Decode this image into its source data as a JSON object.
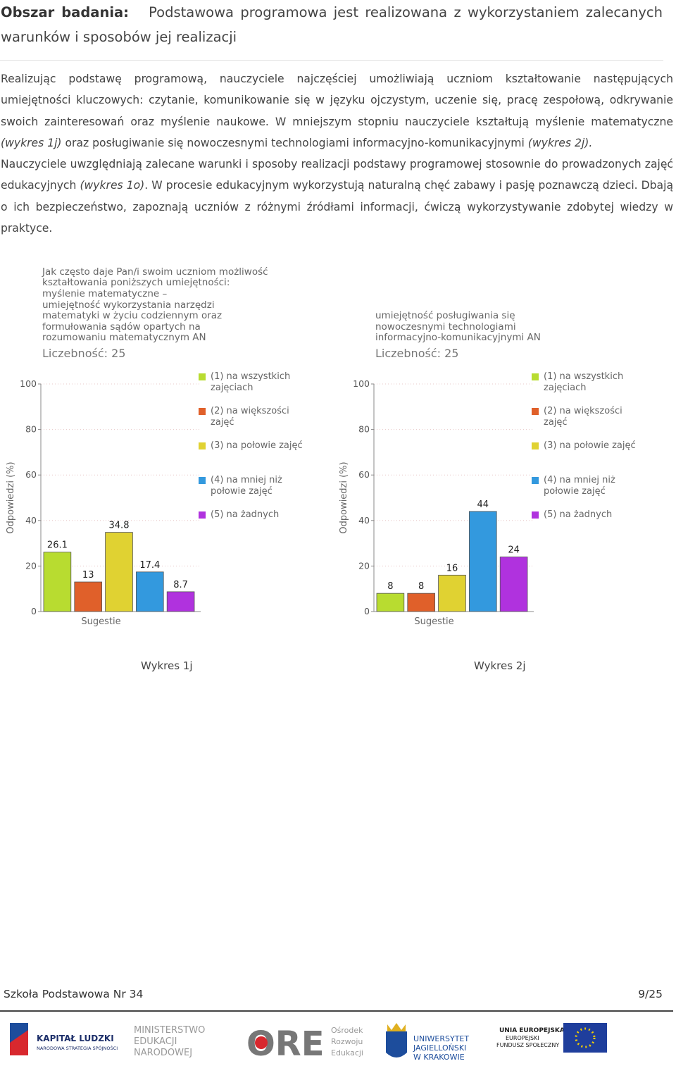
{
  "header": {
    "label": "Obszar badania:",
    "title": "Podstawowa programowa jest realizowana z wykorzystaniem zalecanych warunków i sposobów jej realizacji"
  },
  "paragraphs": [
    [
      {
        "text": "Realizując podstawę programową, nauczyciele najczęściej umożliwiają uczniom kształtowanie następujących umiejętności kluczowych: czytanie, komunikowanie się w języku ojczystym, uczenie się, pracę zespołową, odkrywanie swoich zainteresowań oraz myślenie naukowe. W mniejszym stopniu nauczyciele kształtują myślenie matematyczne ",
        "italic": false
      },
      {
        "text": "(wykres 1j)",
        "italic": true
      },
      {
        "text": " oraz posługiwanie się nowoczesnymi technologiami informacyjno-komunikacyjnymi ",
        "italic": false
      },
      {
        "text": "(wykres 2j).",
        "italic": true
      }
    ],
    [
      {
        "text": "Nauczyciele uwzględniają zalecane warunki i sposoby realizacji podstawy programowej stosownie do prowadzonych zajęć edukacyjnych ",
        "italic": false
      },
      {
        "text": "(wykres 1o)",
        "italic": true
      },
      {
        "text": ". W procesie edukacyjnym wykorzystują naturalną chęć zabawy i pasję poznawczą dzieci. Dbają o ich bezpieczeństwo, zapoznają uczniów z różnymi źródłami informacji, ćwiczą wykorzystywanie zdobytej wiedzy w praktyce.",
        "italic": false
      }
    ]
  ],
  "chart_data": [
    {
      "type": "bar",
      "title": [
        "Jak często daje Pan/i swoim uczniom możliwość",
        "kształtowania poniższych umiejętności:",
        "myślenie matematyczne –",
        "umiejętność wykorzystania narzędzi",
        "matematyki w życiu codziennym oraz",
        "formułowania sądów opartych na",
        "rozumowaniu matematycznym AN"
      ],
      "subtitle": "Liczebność: 25",
      "ylabel": "Odpowiedzi (%)",
      "categories": [
        "Sugestie"
      ],
      "series": [
        {
          "name": "(1) na wszystkich zajęciach",
          "color": "#b8dc30",
          "values": [
            26.1
          ]
        },
        {
          "name": "(2) na większości zajęć",
          "color": "#e0602a",
          "values": [
            13
          ]
        },
        {
          "name": "(3) na połowie zajęć",
          "color": "#e0d232",
          "values": [
            34.8
          ]
        },
        {
          "name": "(4) na mniej niż połowie zajęć",
          "color": "#3399de",
          "values": [
            17.4
          ]
        },
        {
          "name": "(5) na żadnych",
          "color": "#b032de",
          "values": [
            8.7
          ]
        }
      ],
      "ylim": [
        0,
        100
      ],
      "yticks": [
        0,
        20,
        40,
        60,
        80,
        100
      ],
      "grid": true,
      "caption": "Wykres 1j"
    },
    {
      "type": "bar",
      "title": [
        "umiejętność posługiwania się",
        "nowoczesnymi technologiami",
        "informacyjno-komunikacyjnymi AN"
      ],
      "subtitle": "Liczebność: 25",
      "ylabel": "Odpowiedzi (%)",
      "categories": [
        "Sugestie"
      ],
      "series": [
        {
          "name": "(1) na wszystkich zajęciach",
          "color": "#b8dc30",
          "values": [
            8
          ]
        },
        {
          "name": "(2) na większości zajęć",
          "color": "#e0602a",
          "values": [
            8
          ]
        },
        {
          "name": "(3) na połowie zajęć",
          "color": "#e0d232",
          "values": [
            16
          ]
        },
        {
          "name": "(4) na mniej niż połowie zajęć",
          "color": "#3399de",
          "values": [
            44
          ]
        },
        {
          "name": "(5) na żadnych",
          "color": "#b032de",
          "values": [
            24
          ]
        }
      ],
      "ylim": [
        0,
        100
      ],
      "yticks": [
        0,
        20,
        40,
        60,
        80,
        100
      ],
      "grid": true,
      "caption": "Wykres 2j"
    }
  ],
  "footer": {
    "school": "Szkoła Podstawowa Nr 34",
    "page": "9/25"
  },
  "logos": {
    "kl": [
      "KAPITAŁ LUDZKI",
      "NARODOWA STRATEGIA SPÓJNOŚCI"
    ],
    "men": [
      "MINISTERSTWO",
      "EDUKACJI",
      "NARODOWEJ"
    ],
    "ore": [
      "ORE",
      "Ośrodek",
      "Rozwoju",
      "Edukacji"
    ],
    "uj": [
      "UNIWERSYTET",
      "JAGIELLOŃSKI",
      "W KRAKOWIE"
    ],
    "ue": [
      "UNIA EUROPEJSKA",
      "EUROPEJSKI",
      "FUNDUSZ SPOŁECZNY"
    ]
  }
}
